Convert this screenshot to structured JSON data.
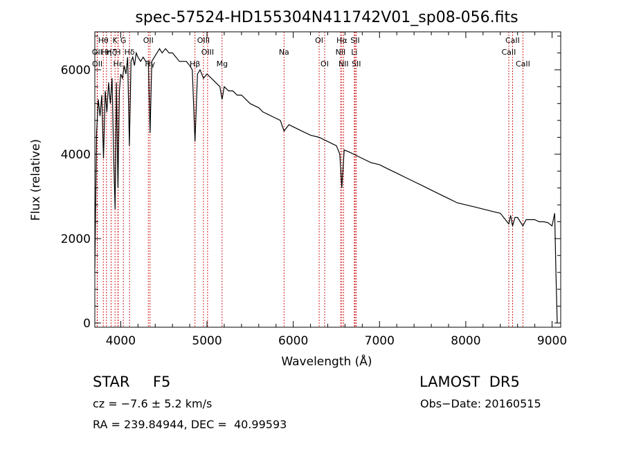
{
  "chart_data": {
    "type": "line",
    "title": "spec-57524-HD155304N411742V01_sp08-056.fits",
    "xlabel": "Wavelength (Å)",
    "ylabel": "Flux (relative)",
    "xlim": [
      3700,
      9100
    ],
    "ylim": [
      -100,
      6900
    ],
    "x_ticks": [
      4000,
      5000,
      6000,
      7000,
      8000,
      9000
    ],
    "y_ticks": [
      0,
      2000,
      4000,
      6000
    ],
    "x_tick_labels": [
      "4000",
      "5000",
      "6000",
      "7000",
      "8000",
      "9000"
    ],
    "y_tick_labels": [
      "0",
      "2000",
      "4000",
      "6000"
    ],
    "grid": false,
    "series": [
      {
        "x": [
          3700,
          3720,
          3740,
          3760,
          3780,
          3800,
          3820,
          3840,
          3860,
          3880,
          3900,
          3920,
          3935,
          3950,
          3968,
          3985,
          4000,
          4020,
          4040,
          4060,
          4080,
          4100,
          4120,
          4140,
          4160,
          4180,
          4200,
          4230,
          4260,
          4290,
          4320,
          4340,
          4360,
          4390,
          4420,
          4450,
          4480,
          4520,
          4560,
          4600,
          4640,
          4680,
          4720,
          4760,
          4800,
          4830,
          4861,
          4890,
          4920,
          4960,
          5000,
          5050,
          5100,
          5150,
          5175,
          5200,
          5250,
          5300,
          5350,
          5400,
          5450,
          5500,
          5550,
          5600,
          5650,
          5700,
          5750,
          5800,
          5850,
          5893,
          5950,
          6000,
          6100,
          6200,
          6300,
          6400,
          6500,
          6540,
          6563,
          6590,
          6650,
          6700,
          6800,
          6900,
          7000,
          7100,
          7200,
          7300,
          7400,
          7500,
          7600,
          7700,
          7800,
          7900,
          8000,
          8100,
          8200,
          8300,
          8400,
          8498,
          8520,
          8542,
          8570,
          8600,
          8662,
          8700,
          8750,
          8800,
          8850,
          8900,
          8950,
          9000,
          9030,
          9045,
          9060
        ],
        "y": [
          1300,
          4500,
          5300,
          4900,
          5400,
          3900,
          5500,
          5000,
          5700,
          5200,
          5800,
          3800,
          2700,
          5700,
          3200,
          5500,
          5900,
          5800,
          6100,
          5900,
          6300,
          4200,
          6200,
          6300,
          6100,
          6400,
          6300,
          6200,
          6300,
          6200,
          6200,
          4500,
          6200,
          6300,
          6400,
          6500,
          6400,
          6500,
          6400,
          6400,
          6300,
          6200,
          6200,
          6200,
          6100,
          6000,
          4300,
          5900,
          6000,
          5800,
          5900,
          5800,
          5700,
          5600,
          5300,
          5600,
          5500,
          5500,
          5400,
          5400,
          5300,
          5200,
          5150,
          5100,
          5000,
          4950,
          4900,
          4850,
          4800,
          4550,
          4700,
          4650,
          4550,
          4450,
          4400,
          4300,
          4200,
          4000,
          3200,
          4100,
          4050,
          4000,
          3900,
          3800,
          3750,
          3650,
          3550,
          3450,
          3350,
          3250,
          3150,
          3050,
          2950,
          2850,
          2800,
          2750,
          2700,
          2650,
          2600,
          2350,
          2550,
          2300,
          2500,
          2500,
          2300,
          2450,
          2450,
          2450,
          2400,
          2400,
          2380,
          2300,
          2600,
          1200,
          0
        ]
      }
    ],
    "line_markers": [
      {
        "label": "Hθ",
        "x": 3798,
        "row": 1
      },
      {
        "label": "OII",
        "x": 3727,
        "row": 2
      },
      {
        "label": "OII",
        "x": 3729,
        "row": 3
      },
      {
        "label": "Hη",
        "x": 3835,
        "row": 2
      },
      {
        "label": "Hζ",
        "x": 3889,
        "row": 2
      },
      {
        "label": "K",
        "x": 3934,
        "row": 1
      },
      {
        "label": "H",
        "x": 3968,
        "row": 2
      },
      {
        "label": "Hε",
        "x": 3970,
        "row": 3
      },
      {
        "label": "G",
        "x": 4030,
        "row": 1
      },
      {
        "label": "Hδ",
        "x": 4102,
        "row": 2
      },
      {
        "label": "OII",
        "x": 4320,
        "row": 1
      },
      {
        "label": "Hγ",
        "x": 4340,
        "row": 3
      },
      {
        "label": "Hβ",
        "x": 4861,
        "row": 4
      },
      {
        "label": "OIII",
        "x": 4959,
        "row": 1
      },
      {
        "label": "OIII",
        "x": 5007,
        "row": 2
      },
      {
        "label": "Mg",
        "x": 5175,
        "row": 4
      },
      {
        "label": "Na",
        "x": 5893,
        "row": 2
      },
      {
        "label": "OI",
        "x": 6300,
        "row": 1
      },
      {
        "label": "OI",
        "x": 6364,
        "row": 3
      },
      {
        "label": "Hα",
        "x": 6563,
        "row": 1
      },
      {
        "label": "NII",
        "x": 6548,
        "row": 2
      },
      {
        "label": "NII",
        "x": 6583,
        "row": 3
      },
      {
        "label": "SII",
        "x": 6717,
        "row": 1
      },
      {
        "label": "Li",
        "x": 6708,
        "row": 2
      },
      {
        "label": "SII",
        "x": 6731,
        "row": 3
      },
      {
        "label": "CaII",
        "x": 8498,
        "row": 2
      },
      {
        "label": "CaII",
        "x": 8542,
        "row": 1
      },
      {
        "label": "CaII",
        "x": 8662,
        "row": 3
      }
    ],
    "marker_color": "#cc0000"
  },
  "info": {
    "object": "STAR     F5",
    "survey": "LAMOST  DR5",
    "cz": "cz = −7.6 ± 5.2 km/s",
    "obs_date": "Obs−Date: 20160515",
    "coords": "RA = 239.84944, DEC =  40.99593"
  }
}
